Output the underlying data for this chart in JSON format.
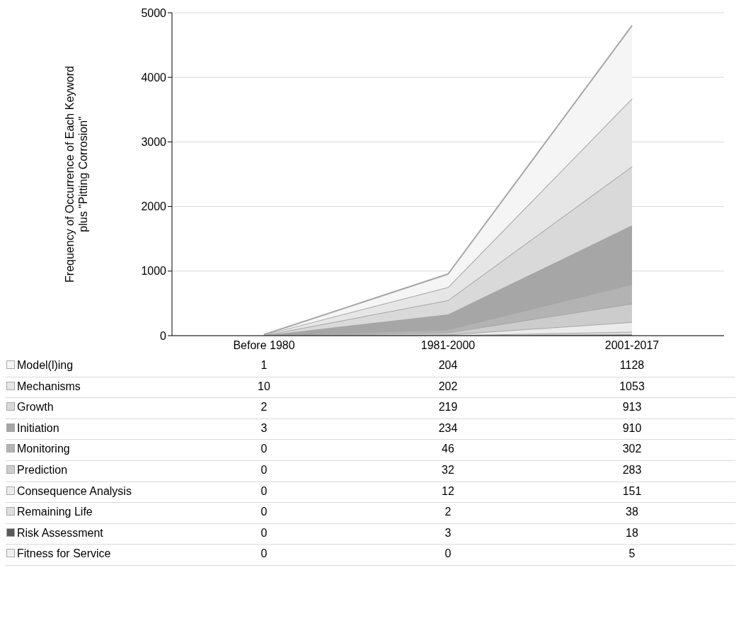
{
  "chart_data": {
    "type": "area",
    "stacked": true,
    "ylabel": "Frequency of Occurrence of Each Keyword\nplus \"Pitting Corrosion\"",
    "categories": [
      "Before 1980",
      "1981-2000",
      "2001-2017"
    ],
    "series": [
      {
        "name": "Fitness for Service",
        "color": "#f0f0f0",
        "values": [
          0,
          0,
          5
        ]
      },
      {
        "name": "Risk Assessment",
        "color": "#595959",
        "values": [
          0,
          3,
          18
        ]
      },
      {
        "name": "Remaining Life",
        "color": "#dedede",
        "values": [
          0,
          2,
          38
        ]
      },
      {
        "name": "Consequence Analysis",
        "color": "#ebebeb",
        "values": [
          0,
          12,
          151
        ]
      },
      {
        "name": "Prediction",
        "color": "#cccccc",
        "values": [
          0,
          32,
          283
        ]
      },
      {
        "name": "Monitoring",
        "color": "#b3b3b3",
        "values": [
          0,
          46,
          302
        ]
      },
      {
        "name": "Initiation",
        "color": "#a6a6a6",
        "values": [
          3,
          234,
          910
        ]
      },
      {
        "name": "Growth",
        "color": "#d9d9d9",
        "values": [
          2,
          219,
          913
        ]
      },
      {
        "name": "Mechanisms",
        "color": "#e6e6e6",
        "values": [
          10,
          202,
          1053
        ]
      },
      {
        "name": "Model(l)ing",
        "color": "#f5f5f5",
        "values": [
          1,
          204,
          1128
        ]
      }
    ],
    "ylim": [
      0,
      5000
    ],
    "yticks": [
      0,
      1000,
      2000,
      3000,
      4000,
      5000
    ],
    "grid": "y",
    "legend": "bottom",
    "data_labels": true
  }
}
